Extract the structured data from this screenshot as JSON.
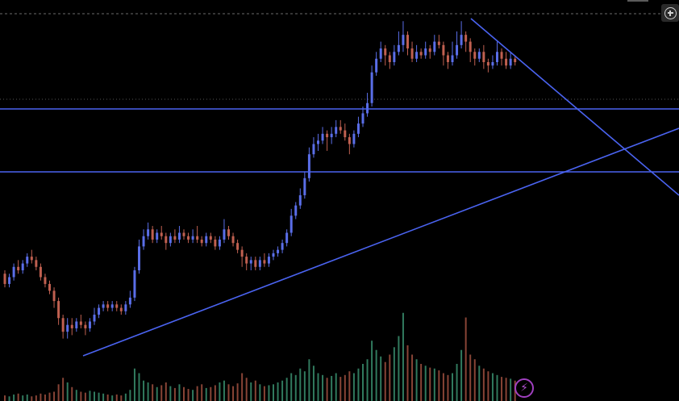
{
  "chart_data": {
    "type": "candlestick",
    "title": "",
    "xlabel": "",
    "ylabel": "",
    "grid": false,
    "price_range_visible": [
      0.0,
      1.0
    ],
    "candles": [
      [
        0.25,
        0.22,
        0.26,
        0.21
      ],
      [
        0.22,
        0.24,
        0.25,
        0.21
      ],
      [
        0.24,
        0.27,
        0.28,
        0.23
      ],
      [
        0.27,
        0.26,
        0.29,
        0.25
      ],
      [
        0.26,
        0.28,
        0.29,
        0.25
      ],
      [
        0.28,
        0.3,
        0.31,
        0.27
      ],
      [
        0.3,
        0.29,
        0.32,
        0.28
      ],
      [
        0.29,
        0.27,
        0.3,
        0.26
      ],
      [
        0.27,
        0.24,
        0.28,
        0.23
      ],
      [
        0.24,
        0.22,
        0.25,
        0.21
      ],
      [
        0.22,
        0.2,
        0.23,
        0.19
      ],
      [
        0.2,
        0.17,
        0.21,
        0.15
      ],
      [
        0.17,
        0.12,
        0.18,
        0.1
      ],
      [
        0.12,
        0.08,
        0.13,
        0.06
      ],
      [
        0.08,
        0.1,
        0.12,
        0.06
      ],
      [
        0.1,
        0.09,
        0.12,
        0.07
      ],
      [
        0.09,
        0.11,
        0.12,
        0.08
      ],
      [
        0.11,
        0.1,
        0.13,
        0.09
      ],
      [
        0.1,
        0.09,
        0.11,
        0.07
      ],
      [
        0.09,
        0.11,
        0.12,
        0.08
      ],
      [
        0.11,
        0.13,
        0.15,
        0.1
      ],
      [
        0.13,
        0.15,
        0.16,
        0.12
      ],
      [
        0.15,
        0.16,
        0.17,
        0.14
      ],
      [
        0.16,
        0.15,
        0.17,
        0.14
      ],
      [
        0.15,
        0.16,
        0.17,
        0.14
      ],
      [
        0.16,
        0.15,
        0.17,
        0.14
      ],
      [
        0.15,
        0.14,
        0.16,
        0.13
      ],
      [
        0.14,
        0.16,
        0.17,
        0.13
      ],
      [
        0.16,
        0.18,
        0.2,
        0.15
      ],
      [
        0.18,
        0.26,
        0.27,
        0.17
      ],
      [
        0.26,
        0.33,
        0.35,
        0.25
      ],
      [
        0.33,
        0.36,
        0.38,
        0.32
      ],
      [
        0.36,
        0.38,
        0.4,
        0.35
      ],
      [
        0.38,
        0.35,
        0.39,
        0.34
      ],
      [
        0.35,
        0.37,
        0.38,
        0.34
      ],
      [
        0.37,
        0.36,
        0.39,
        0.35
      ],
      [
        0.36,
        0.34,
        0.37,
        0.32
      ],
      [
        0.34,
        0.36,
        0.37,
        0.33
      ],
      [
        0.36,
        0.35,
        0.38,
        0.34
      ],
      [
        0.35,
        0.37,
        0.39,
        0.34
      ],
      [
        0.37,
        0.36,
        0.38,
        0.35
      ],
      [
        0.36,
        0.35,
        0.37,
        0.34
      ],
      [
        0.35,
        0.36,
        0.38,
        0.34
      ],
      [
        0.36,
        0.35,
        0.39,
        0.34
      ],
      [
        0.35,
        0.34,
        0.36,
        0.33
      ],
      [
        0.34,
        0.36,
        0.37,
        0.33
      ],
      [
        0.36,
        0.35,
        0.37,
        0.34
      ],
      [
        0.35,
        0.33,
        0.36,
        0.32
      ],
      [
        0.33,
        0.35,
        0.36,
        0.32
      ],
      [
        0.35,
        0.38,
        0.41,
        0.34
      ],
      [
        0.38,
        0.36,
        0.39,
        0.35
      ],
      [
        0.36,
        0.34,
        0.37,
        0.33
      ],
      [
        0.34,
        0.32,
        0.35,
        0.31
      ],
      [
        0.32,
        0.3,
        0.33,
        0.27
      ],
      [
        0.3,
        0.28,
        0.31,
        0.26
      ],
      [
        0.28,
        0.29,
        0.3,
        0.26
      ],
      [
        0.29,
        0.27,
        0.3,
        0.26
      ],
      [
        0.27,
        0.29,
        0.3,
        0.26
      ],
      [
        0.29,
        0.28,
        0.31,
        0.27
      ],
      [
        0.28,
        0.3,
        0.31,
        0.27
      ],
      [
        0.3,
        0.31,
        0.32,
        0.29
      ],
      [
        0.31,
        0.32,
        0.33,
        0.3
      ],
      [
        0.32,
        0.34,
        0.35,
        0.31
      ],
      [
        0.34,
        0.37,
        0.38,
        0.33
      ],
      [
        0.37,
        0.42,
        0.44,
        0.36
      ],
      [
        0.42,
        0.45,
        0.46,
        0.41
      ],
      [
        0.45,
        0.48,
        0.5,
        0.44
      ],
      [
        0.48,
        0.53,
        0.55,
        0.47
      ],
      [
        0.53,
        0.6,
        0.62,
        0.52
      ],
      [
        0.6,
        0.63,
        0.65,
        0.59
      ],
      [
        0.63,
        0.64,
        0.66,
        0.61
      ],
      [
        0.64,
        0.66,
        0.68,
        0.63
      ],
      [
        0.66,
        0.65,
        0.67,
        0.61
      ],
      [
        0.65,
        0.66,
        0.68,
        0.63
      ],
      [
        0.66,
        0.68,
        0.7,
        0.65
      ],
      [
        0.68,
        0.67,
        0.7,
        0.66
      ],
      [
        0.67,
        0.65,
        0.69,
        0.64
      ],
      [
        0.65,
        0.63,
        0.66,
        0.6
      ],
      [
        0.63,
        0.66,
        0.67,
        0.62
      ],
      [
        0.66,
        0.69,
        0.71,
        0.65
      ],
      [
        0.69,
        0.72,
        0.74,
        0.68
      ],
      [
        0.72,
        0.75,
        0.78,
        0.71
      ],
      [
        0.75,
        0.84,
        0.86,
        0.74
      ],
      [
        0.84,
        0.88,
        0.9,
        0.83
      ],
      [
        0.88,
        0.91,
        0.93,
        0.87
      ],
      [
        0.91,
        0.89,
        0.92,
        0.86
      ],
      [
        0.89,
        0.87,
        0.9,
        0.85
      ],
      [
        0.87,
        0.9,
        0.92,
        0.86
      ],
      [
        0.9,
        0.92,
        0.96,
        0.89
      ],
      [
        0.92,
        0.95,
        0.99,
        0.9
      ],
      [
        0.95,
        0.91,
        0.96,
        0.89
      ],
      [
        0.91,
        0.88,
        0.93,
        0.87
      ],
      [
        0.88,
        0.9,
        0.92,
        0.87
      ],
      [
        0.9,
        0.89,
        0.91,
        0.88
      ],
      [
        0.89,
        0.91,
        0.93,
        0.88
      ],
      [
        0.91,
        0.9,
        0.92,
        0.88
      ],
      [
        0.9,
        0.93,
        0.95,
        0.89
      ],
      [
        0.93,
        0.92,
        0.95,
        0.91
      ],
      [
        0.92,
        0.89,
        0.93,
        0.86
      ],
      [
        0.89,
        0.87,
        0.9,
        0.85
      ],
      [
        0.87,
        0.89,
        0.93,
        0.86
      ],
      [
        0.89,
        0.92,
        0.96,
        0.88
      ],
      [
        0.92,
        0.95,
        0.99,
        0.91
      ],
      [
        0.95,
        0.93,
        0.96,
        0.9
      ],
      [
        0.93,
        0.9,
        0.94,
        0.87
      ],
      [
        0.9,
        0.88,
        0.91,
        0.86
      ],
      [
        0.88,
        0.9,
        0.91,
        0.87
      ],
      [
        0.9,
        0.87,
        0.92,
        0.85
      ],
      [
        0.87,
        0.86,
        0.88,
        0.84
      ],
      [
        0.86,
        0.87,
        0.89,
        0.85
      ],
      [
        0.87,
        0.9,
        0.93,
        0.86
      ],
      [
        0.9,
        0.88,
        0.91,
        0.86
      ],
      [
        0.88,
        0.86,
        0.9,
        0.85
      ],
      [
        0.86,
        0.88,
        0.9,
        0.85
      ],
      [
        0.88,
        0.87,
        0.89,
        0.86
      ]
    ],
    "volume": [
      0.06,
      0.05,
      0.07,
      0.08,
      0.06,
      0.07,
      0.05,
      0.06,
      0.08,
      0.07,
      0.09,
      0.1,
      0.18,
      0.25,
      0.2,
      0.15,
      0.12,
      0.1,
      0.09,
      0.11,
      0.1,
      0.09,
      0.08,
      0.07,
      0.06,
      0.07,
      0.06,
      0.08,
      0.12,
      0.35,
      0.3,
      0.22,
      0.2,
      0.18,
      0.15,
      0.17,
      0.2,
      0.16,
      0.14,
      0.18,
      0.15,
      0.13,
      0.12,
      0.16,
      0.18,
      0.14,
      0.15,
      0.17,
      0.2,
      0.22,
      0.18,
      0.16,
      0.19,
      0.3,
      0.25,
      0.2,
      0.22,
      0.18,
      0.16,
      0.17,
      0.18,
      0.2,
      0.22,
      0.25,
      0.3,
      0.28,
      0.35,
      0.32,
      0.45,
      0.38,
      0.3,
      0.28,
      0.25,
      0.27,
      0.3,
      0.26,
      0.28,
      0.32,
      0.3,
      0.35,
      0.4,
      0.45,
      0.65,
      0.55,
      0.48,
      0.42,
      0.5,
      0.58,
      0.7,
      0.95,
      0.6,
      0.5,
      0.45,
      0.4,
      0.38,
      0.36,
      0.35,
      0.33,
      0.3,
      0.28,
      0.3,
      0.4,
      0.55,
      0.9,
      0.5,
      0.45,
      0.38,
      0.35,
      0.32,
      0.3,
      0.28,
      0.26,
      0.25,
      0.24,
      0.22
    ],
    "trendlines": [
      {
        "type": "horizontal",
        "price": 0.855
      },
      {
        "type": "horizontal",
        "price": 0.605
      },
      {
        "type": "rising-support"
      },
      {
        "type": "falling-resistance"
      }
    ],
    "colors": {
      "background": "#000000",
      "up": "#5a6ee8",
      "down": "#c06050",
      "drawing": "#4a63f0",
      "vol_up": "#3a8f6e",
      "vol_down": "#a05040",
      "dotted": "#555555"
    }
  },
  "controls": {
    "zoom_icon": "plus-circle-icon",
    "bolt_icon": "lightning-icon"
  }
}
